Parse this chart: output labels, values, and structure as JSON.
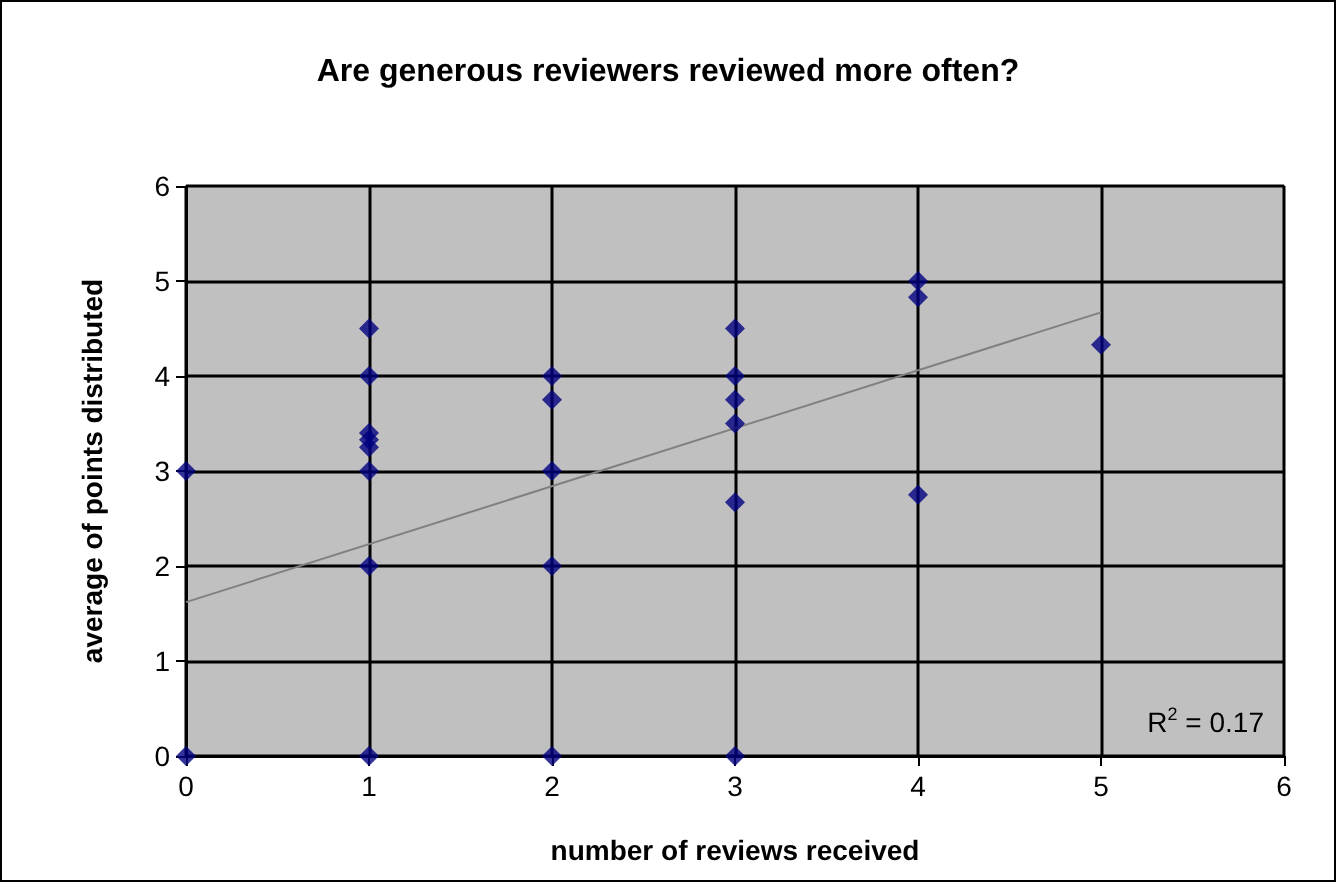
{
  "chart_data": {
    "type": "scatter",
    "title": "Are generous reviewers reviewed more often?",
    "xlabel": "number of reviews received",
    "ylabel": "average of points distributed",
    "series": [
      {
        "color": "#000080",
        "marker": "diamond",
        "x": [
          0,
          0,
          1,
          1,
          1,
          1,
          1,
          1,
          1,
          1,
          2,
          2,
          2,
          2,
          2,
          3,
          3,
          3,
          3,
          3,
          3,
          4,
          4,
          4,
          5
        ],
        "values": [
          3,
          0,
          4.5,
          4,
          3.4,
          3.33,
          3.25,
          3,
          2,
          0,
          4,
          3.75,
          3,
          2,
          0,
          4.5,
          4,
          3.75,
          3.5,
          2.67,
          0,
          5,
          4.83,
          2.75,
          4.33
        ]
      },
      {
        "type": "line",
        "color": "#808080",
        "marker": "none",
        "x": [
          0,
          5
        ],
        "values": [
          1.62,
          4.67
        ]
      }
    ],
    "annotations": [
      "R$^{2}$ = 0.17"
    ],
    "xlim": [
      0,
      6
    ],
    "xticks": [
      0,
      1,
      2,
      3,
      4,
      5,
      6
    ],
    "ylim": [
      0,
      6
    ],
    "yticks": [
      0,
      1,
      2,
      3,
      4,
      5,
      6
    ],
    "grid": true
  }
}
